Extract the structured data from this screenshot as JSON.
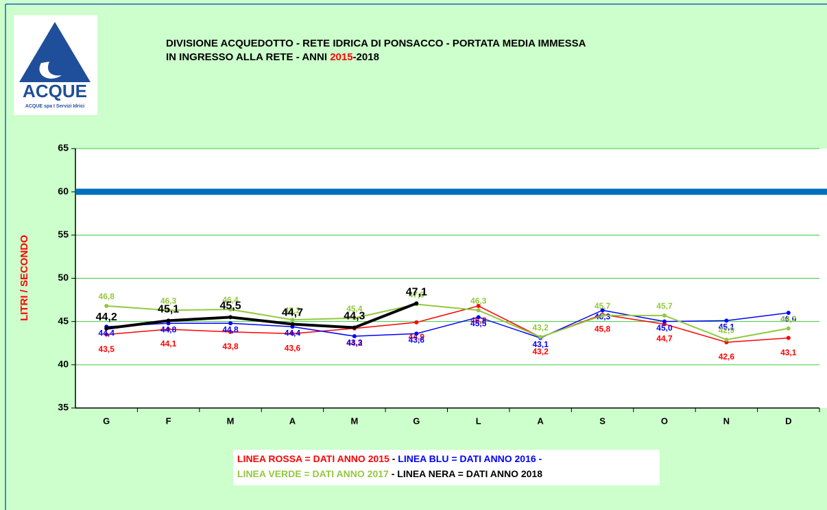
{
  "logo": {
    "name": "ACQUE",
    "subtitle": "ACQUE spa I Servizi Idrici"
  },
  "chart_data": {
    "type": "line",
    "title_parts": [
      {
        "text": "DIVISIONE ACQUEDOTTO - RETE IDRICA DI PONSACCO - PORTATA MEDIA IMMESSA",
        "color": "#000000"
      },
      {
        "text": "IN INGRESSO ALLA RETE -  ANNI ",
        "color": "#000000"
      },
      {
        "text": "2015",
        "color": "#ff0000"
      },
      {
        "text": "-2018",
        "color": "#000000"
      }
    ],
    "y_label": "LITRI / SECONDO",
    "categories": [
      "G",
      "F",
      "M",
      "A",
      "M",
      "G",
      "L",
      "A",
      "S",
      "O",
      "N",
      "D"
    ],
    "ylim": [
      35,
      65
    ],
    "yticks": [
      35,
      40,
      45,
      50,
      55,
      60,
      65
    ],
    "grid": true,
    "reference_line": {
      "value": 60,
      "color": "#0070c0"
    },
    "series": [
      {
        "name": "LINEA ROSSA = DATI ANNO 2015",
        "color": "#ff0000",
        "values": [
          43.5,
          44.1,
          43.8,
          43.6,
          44.2,
          44.9,
          46.8,
          43.2,
          45.8,
          44.7,
          42.6,
          43.1
        ],
        "value_labels": [
          "43,5",
          "44,1",
          "43,8",
          "43,6",
          "44,2",
          "44,9",
          "46,8",
          "43,2",
          "45,8",
          "44,7",
          "42,6",
          "43,1"
        ]
      },
      {
        "name": "LINEA BLU = DATI ANNO 2016",
        "color": "#0000ff",
        "values": [
          44.4,
          44.8,
          44.8,
          44.4,
          43.3,
          43.6,
          45.5,
          43.1,
          46.3,
          45.0,
          45.1,
          46.0
        ],
        "value_labels": [
          "44,4",
          "44,8",
          "44,8",
          "44,4",
          "43,3",
          "43,6",
          "45,5",
          "43,1",
          "46,3",
          "45,0",
          "45,1",
          "46,0"
        ]
      },
      {
        "name": "LINEA VERDE  = DATI ANNO 2017",
        "color": "#92c83e",
        "values": [
          46.8,
          46.3,
          46.4,
          45.2,
          45.4,
          47.0,
          46.3,
          43.2,
          45.7,
          45.7,
          42.9,
          44.2
        ],
        "value_labels": [
          "46,8",
          "46,3",
          "46,4",
          "45,2",
          "45,4",
          "47,0",
          "46,3",
          "43,2",
          "45,7",
          "45,7",
          "42,9",
          "44,2"
        ]
      },
      {
        "name": "LINEA NERA = DATI ANNO 2018",
        "color": "#000000",
        "values": [
          44.2,
          45.1,
          45.5,
          44.7,
          44.3,
          47.1,
          null,
          null,
          null,
          null,
          null,
          null
        ],
        "value_labels": [
          "44,2",
          "45,1",
          "45,5",
          "44,7",
          "44,3",
          "47,1",
          null,
          null,
          null,
          null,
          null,
          null
        ]
      }
    ]
  }
}
